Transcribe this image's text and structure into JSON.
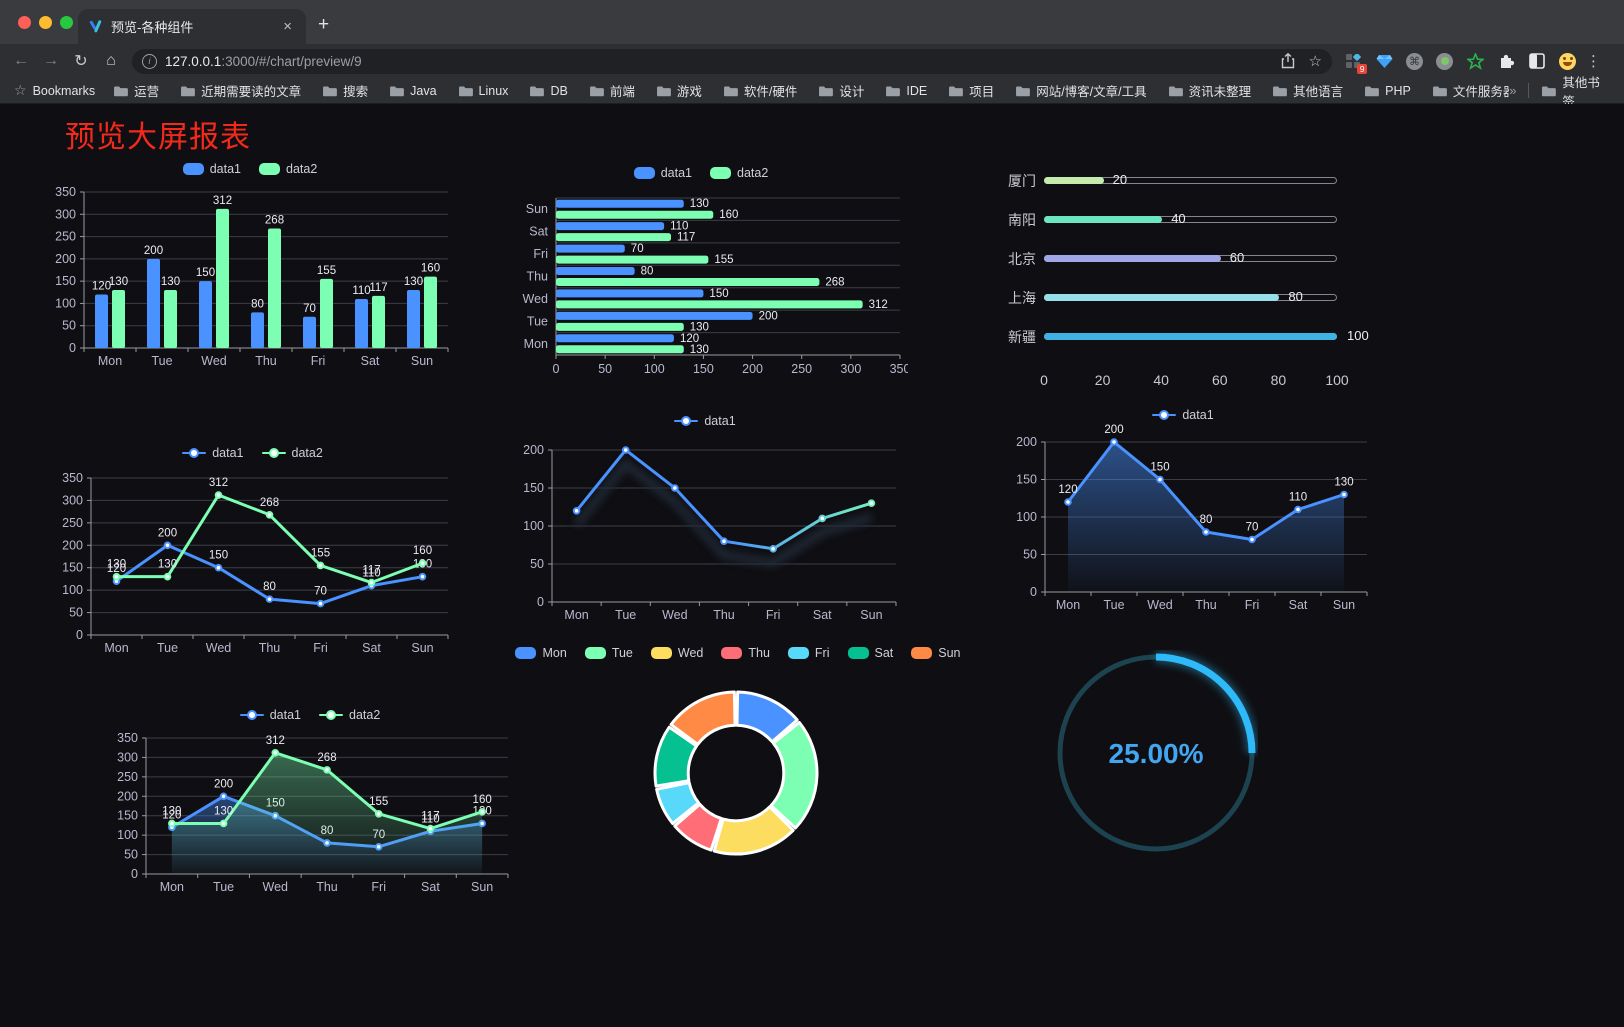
{
  "browser": {
    "tab": {
      "title": "预览-各种组件"
    },
    "icons": {
      "back": "←",
      "forward": "→",
      "reload": "↻",
      "home": "⌂",
      "info": "i",
      "bookmark_star": "☆",
      "share_star": "☆",
      "close_tab": "×",
      "new_tab": "+",
      "overflow_chevron": "»",
      "menu_dots": "⋮",
      "command": "⌘"
    },
    "url": {
      "host": "127.0.0.1",
      "rest": ":3000/#/chart/preview/9"
    },
    "extension_badge": "9",
    "bookmarks_label": "Bookmarks",
    "bookmarks": [
      "运营",
      "近期需要读的文章",
      "搜索",
      "Java",
      "Linux",
      "DB",
      "前端",
      "游戏",
      "软件/硬件",
      "设计",
      "IDE",
      "项目",
      "网站/博客/文章/工具",
      "资讯未整理",
      "其他语言",
      "PHP",
      "文件服务器"
    ],
    "other_bookmarks": "其他书签"
  },
  "page": {
    "title": "预览大屏报表",
    "title_color": "#f5291a",
    "background": "#0f0f13"
  },
  "chart_data": [
    {
      "id": "bar-grouped",
      "type": "bar",
      "categories": [
        "Mon",
        "Tue",
        "Wed",
        "Thu",
        "Fri",
        "Sat",
        "Sun"
      ],
      "series": [
        {
          "name": "data1",
          "color": "#4992ff",
          "values": [
            120,
            200,
            150,
            80,
            70,
            110,
            130
          ]
        },
        {
          "name": "data2",
          "color": "#7cffb2",
          "values": [
            130,
            130,
            312,
            268,
            155,
            117,
            160
          ]
        }
      ],
      "ylim": [
        0,
        350
      ],
      "ytick_step": 50,
      "legend_position": "top",
      "value_labels": true,
      "grid": true
    },
    {
      "id": "bar-horizontal",
      "type": "bar-horizontal",
      "categories": [
        "Mon",
        "Tue",
        "Wed",
        "Thu",
        "Fri",
        "Sat",
        "Sun"
      ],
      "categories_top_to_bottom": [
        "Sun",
        "Sat",
        "Fri",
        "Thu",
        "Wed",
        "Tue",
        "Mon"
      ],
      "series": [
        {
          "name": "data1",
          "color": "#4992ff",
          "values": [
            120,
            200,
            150,
            80,
            70,
            110,
            130
          ]
        },
        {
          "name": "data2",
          "color": "#7cffb2",
          "values": [
            130,
            130,
            312,
            268,
            155,
            117,
            160
          ]
        }
      ],
      "xlim": [
        0,
        350
      ],
      "xtick_step": 50,
      "legend_position": "top",
      "value_labels": true,
      "grid": true
    },
    {
      "id": "city-progress",
      "type": "progress-bars",
      "items": [
        {
          "label": "厦门",
          "value": 20,
          "color": "#c4ebad"
        },
        {
          "label": "南阳",
          "value": 40,
          "color": "#6be6c1"
        },
        {
          "label": "北京",
          "value": 60,
          "color": "#a0a7e6"
        },
        {
          "label": "上海",
          "value": 80,
          "color": "#96dee8"
        },
        {
          "label": "新疆",
          "value": 100,
          "color": "#3fb1e3"
        }
      ],
      "xlim": [
        0,
        100
      ],
      "xticks": [
        0,
        20,
        40,
        60,
        80,
        100
      ]
    },
    {
      "id": "line-dual",
      "type": "line",
      "categories": [
        "Mon",
        "Tue",
        "Wed",
        "Thu",
        "Fri",
        "Sat",
        "Sun"
      ],
      "series": [
        {
          "name": "data1",
          "color": "#4992ff",
          "values": [
            120,
            200,
            150,
            80,
            70,
            110,
            130
          ]
        },
        {
          "name": "data2",
          "color": "#7cffb2",
          "values": [
            130,
            130,
            312,
            268,
            155,
            117,
            160
          ]
        }
      ],
      "ylim": [
        0,
        350
      ],
      "ytick_step": 50,
      "legend_position": "top",
      "value_labels": true,
      "grid": true
    },
    {
      "id": "line-gradient",
      "type": "line",
      "categories": [
        "Mon",
        "Tue",
        "Wed",
        "Thu",
        "Fri",
        "Sat",
        "Sun"
      ],
      "series": [
        {
          "name": "data1",
          "gradient": [
            "#4992ff",
            "#7cffb2"
          ],
          "values": [
            120,
            200,
            150,
            80,
            70,
            110,
            130
          ]
        }
      ],
      "ylim": [
        0,
        200
      ],
      "ytick_step": 50,
      "legend_position": "top",
      "value_labels": false,
      "shadow": true,
      "grid": true
    },
    {
      "id": "area-single",
      "type": "area",
      "categories": [
        "Mon",
        "Tue",
        "Wed",
        "Thu",
        "Fri",
        "Sat",
        "Sun"
      ],
      "series": [
        {
          "name": "data1",
          "color": "#4992ff",
          "fill": true,
          "fill_alpha": 0.5,
          "values": [
            120,
            200,
            150,
            80,
            70,
            110,
            130
          ]
        }
      ],
      "ylim": [
        0,
        200
      ],
      "ytick_step": 50,
      "legend_position": "top",
      "value_labels": true,
      "grid": true
    },
    {
      "id": "area-dual",
      "type": "area",
      "categories": [
        "Mon",
        "Tue",
        "Wed",
        "Thu",
        "Fri",
        "Sat",
        "Sun"
      ],
      "series": [
        {
          "name": "data1",
          "color": "#4992ff",
          "fill": true,
          "fill_alpha": 0.42,
          "values": [
            120,
            200,
            150,
            80,
            70,
            110,
            130
          ]
        },
        {
          "name": "data2",
          "color": "#7cffb2",
          "fill": true,
          "fill_alpha": 0.38,
          "values": [
            130,
            130,
            312,
            268,
            155,
            117,
            160
          ]
        }
      ],
      "ylim": [
        0,
        350
      ],
      "ytick_step": 50,
      "legend_position": "top",
      "value_labels": true,
      "grid": true
    },
    {
      "id": "weekday-donut",
      "type": "pie",
      "categories": [
        "Mon",
        "Tue",
        "Wed",
        "Thu",
        "Fri",
        "Sat",
        "Sun"
      ],
      "values": [
        120,
        200,
        150,
        80,
        70,
        110,
        130
      ],
      "colors": [
        "#4992ff",
        "#7cffb2",
        "#fddd60",
        "#ff6e76",
        "#58d9f9",
        "#05c091",
        "#ff8a45"
      ],
      "inner_radius_ratio": 0.59,
      "legend_position": "top"
    },
    {
      "id": "percent-gauge",
      "type": "gauge",
      "value": 25,
      "label": "25.00%",
      "color": "#2eb9f8",
      "track_color": "#1c434f",
      "text_color": "#42a6f0"
    }
  ]
}
